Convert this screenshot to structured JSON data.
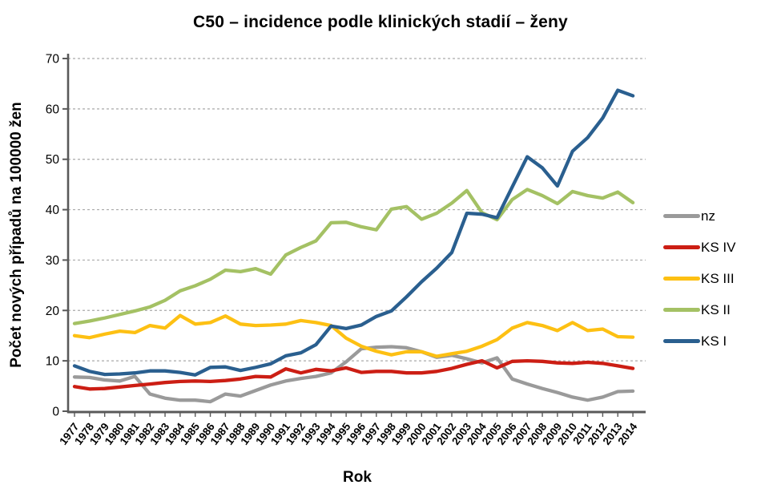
{
  "chart_data": {
    "type": "line",
    "title": "C50 – incidence podle klinických stadií – ženy",
    "xlabel": "Rok",
    "ylabel": "Počet nových případů na 100000 žen",
    "ylim": [
      0,
      70
    ],
    "y_ticks": [
      0,
      10,
      20,
      30,
      40,
      50,
      60,
      70
    ],
    "grid": "horizontal-dashed",
    "legend_position": "right",
    "x": [
      1977,
      1978,
      1979,
      1980,
      1981,
      1982,
      1983,
      1984,
      1985,
      1986,
      1987,
      1988,
      1989,
      1990,
      1991,
      1992,
      1993,
      1994,
      1995,
      1996,
      1997,
      1998,
      1999,
      2000,
      2001,
      2002,
      2003,
      2004,
      2005,
      2006,
      2007,
      2008,
      2009,
      2010,
      2011,
      2012,
      2013,
      2014
    ],
    "series": [
      {
        "name": "nz",
        "color": "#9a9a9a",
        "values": [
          6.8,
          6.7,
          6.2,
          6.0,
          6.9,
          3.4,
          2.6,
          2.2,
          2.2,
          1.9,
          3.4,
          3.0,
          4.1,
          5.2,
          6.0,
          6.5,
          6.9,
          7.6,
          9.8,
          12.4,
          12.7,
          12.8,
          12.6,
          11.8,
          10.7,
          11.1,
          10.4,
          9.6,
          10.6,
          6.4,
          5.4,
          4.5,
          3.7,
          2.8,
          2.2,
          2.8,
          3.9,
          4.0
        ]
      },
      {
        "name": "KS IV",
        "color": "#cc1e14",
        "values": [
          4.9,
          4.4,
          4.5,
          4.8,
          5.1,
          5.4,
          5.7,
          5.9,
          6.0,
          5.9,
          6.1,
          6.4,
          6.9,
          6.8,
          8.4,
          7.6,
          8.3,
          8.0,
          8.6,
          7.7,
          7.9,
          7.9,
          7.6,
          7.6,
          7.9,
          8.5,
          9.3,
          10.0,
          8.6,
          9.9,
          10.0,
          9.9,
          9.6,
          9.5,
          9.7,
          9.5,
          9.0,
          8.5
        ]
      },
      {
        "name": "KS III",
        "color": "#fdc013",
        "values": [
          15.0,
          14.6,
          15.3,
          15.9,
          15.6,
          17.0,
          16.5,
          19.0,
          17.3,
          17.6,
          18.9,
          17.3,
          17.0,
          17.1,
          17.3,
          18.0,
          17.6,
          17.0,
          14.5,
          12.9,
          11.9,
          11.2,
          11.8,
          11.8,
          10.9,
          11.4,
          11.9,
          12.9,
          14.2,
          16.5,
          17.6,
          17.0,
          16.0,
          17.6,
          16.0,
          16.3,
          14.8,
          14.7
        ]
      },
      {
        "name": "KS II",
        "color": "#a4c164",
        "values": [
          17.4,
          17.9,
          18.5,
          19.2,
          19.9,
          20.7,
          22.0,
          23.9,
          24.9,
          26.2,
          28.0,
          27.7,
          28.3,
          27.2,
          31.0,
          32.5,
          33.8,
          37.4,
          37.5,
          36.6,
          36.0,
          40.1,
          40.6,
          38.1,
          39.3,
          41.3,
          43.8,
          39.4,
          38.0,
          42.0,
          44.0,
          42.8,
          41.2,
          43.6,
          42.8,
          42.3,
          43.5,
          41.4
        ]
      },
      {
        "name": "KS I",
        "color": "#2a5f8f",
        "values": [
          9.0,
          7.9,
          7.3,
          7.4,
          7.6,
          8.0,
          8.0,
          7.7,
          7.2,
          8.7,
          8.8,
          8.1,
          8.7,
          9.4,
          11.0,
          11.6,
          13.2,
          16.9,
          16.4,
          17.1,
          18.8,
          19.9,
          22.7,
          25.7,
          28.4,
          31.5,
          39.3,
          39.1,
          38.4,
          44.5,
          50.5,
          48.3,
          44.7,
          51.6,
          54.3,
          58.2,
          63.7,
          62.6
        ]
      }
    ],
    "style": {
      "axis_color": "#595959",
      "grid_color": "#aaaaaa",
      "tick_label_color": "#000000"
    }
  }
}
